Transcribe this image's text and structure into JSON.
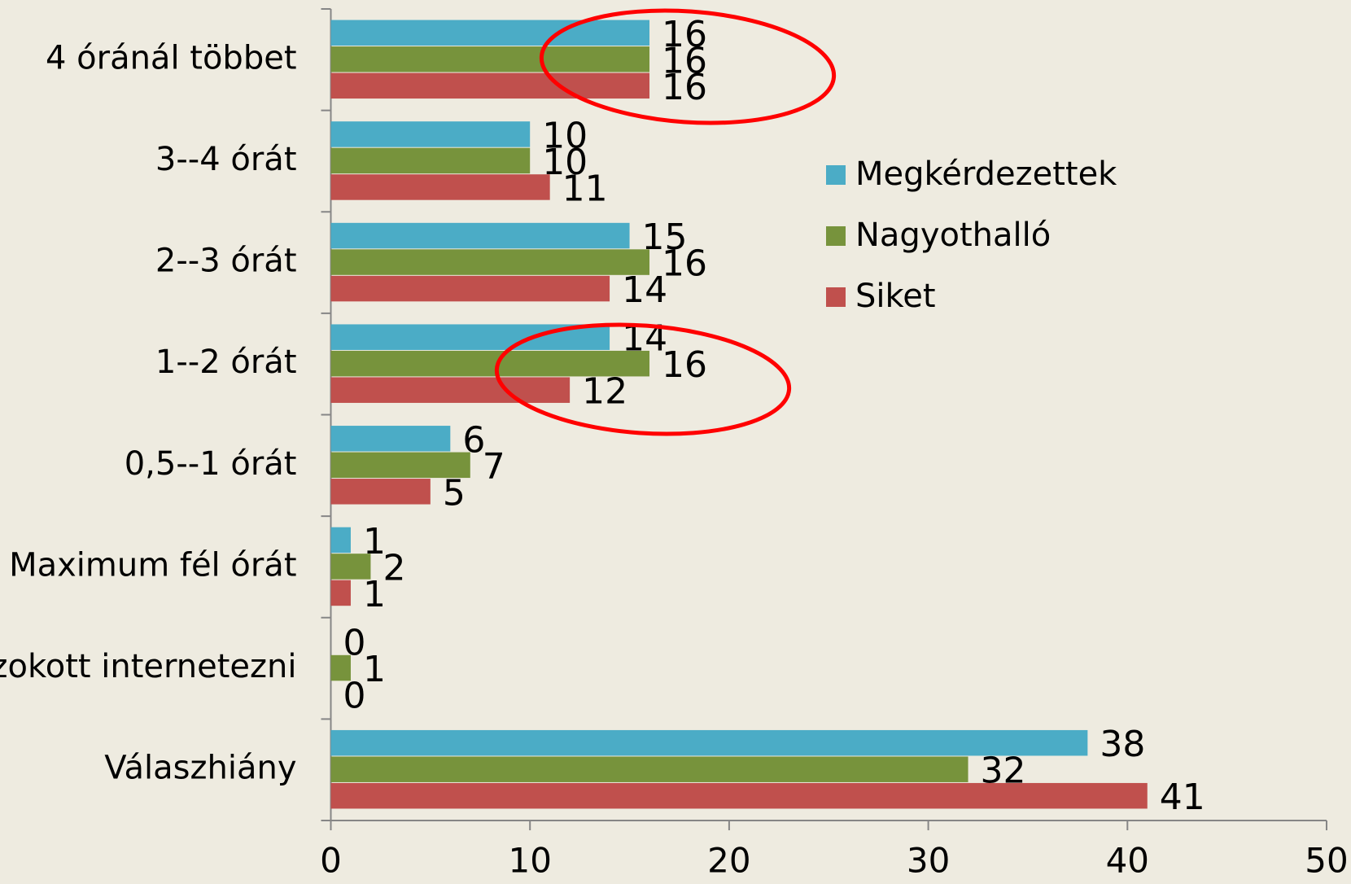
{
  "chart_data": {
    "type": "bar",
    "orientation": "horizontal",
    "categories": [
      "4 óránál többet",
      "3--4 órát",
      "2--3 órát",
      "1--2 órát",
      "0,5--1 órát",
      "Maximum fél órát",
      "Nem szokott internetezni",
      "Válaszhiány"
    ],
    "series": [
      {
        "name": "Megkérdezettek",
        "color": "#4bacc6",
        "values": [
          16,
          10,
          15,
          14,
          6,
          1,
          0,
          38
        ]
      },
      {
        "name": "Nagyothalló",
        "color": "#77933c",
        "values": [
          16,
          10,
          16,
          16,
          7,
          2,
          1,
          32
        ]
      },
      {
        "name": "Siket",
        "color": "#c0504d",
        "values": [
          16,
          11,
          14,
          12,
          5,
          1,
          0,
          41
        ]
      }
    ],
    "xlim": [
      0,
      50
    ],
    "xticks": [
      0,
      10,
      20,
      30,
      40,
      50
    ],
    "legend": "right"
  }
}
